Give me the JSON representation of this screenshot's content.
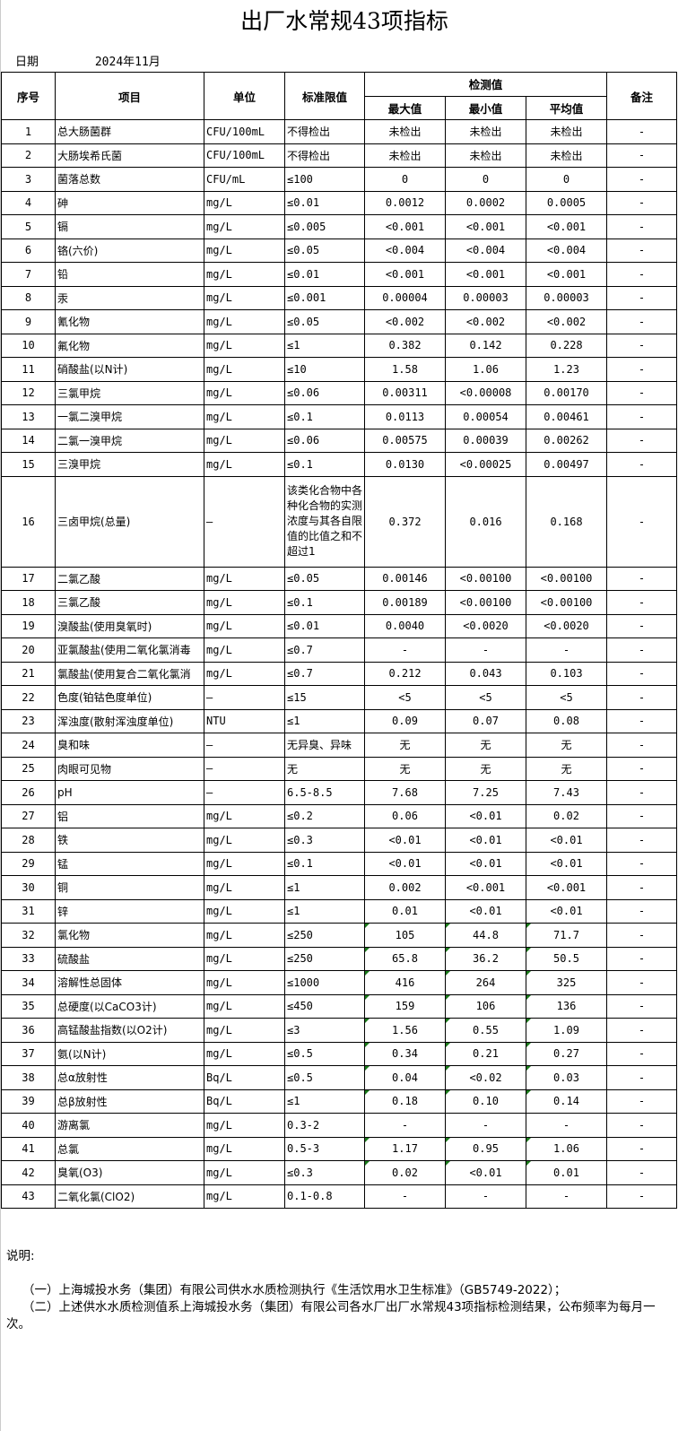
{
  "title": "出厂水常规43项指标",
  "date_label": "日期",
  "date_value": "2024年11月",
  "headers": {
    "no": "序号",
    "item": "项目",
    "unit": "单位",
    "limit": "标准限值",
    "measured": "检测值",
    "max": "最大值",
    "min": "最小值",
    "avg": "平均值",
    "remark": "备注"
  },
  "rows": [
    [
      "1",
      "总大肠菌群",
      "CFU/100mL",
      "不得检出",
      "未检出",
      "未检出",
      "未检出",
      "-"
    ],
    [
      "2",
      "大肠埃希氏菌",
      "CFU/100mL",
      "不得检出",
      "未检出",
      "未检出",
      "未检出",
      "-"
    ],
    [
      "3",
      "菌落总数",
      "CFU/mL",
      "≤100",
      "0",
      "0",
      "0",
      "-"
    ],
    [
      "4",
      "砷",
      "mg/L",
      "≤0.01",
      "0.0012",
      "0.0002",
      "0.0005",
      "-"
    ],
    [
      "5",
      "镉",
      "mg/L",
      "≤0.005",
      "<0.001",
      "<0.001",
      "<0.001",
      "-"
    ],
    [
      "6",
      "铬(六价)",
      "mg/L",
      "≤0.05",
      "<0.004",
      "<0.004",
      "<0.004",
      "-"
    ],
    [
      "7",
      "铅",
      "mg/L",
      "≤0.01",
      "<0.001",
      "<0.001",
      "<0.001",
      "-"
    ],
    [
      "8",
      "汞",
      "mg/L",
      "≤0.001",
      "0.00004",
      "0.00003",
      "0.00003",
      "-"
    ],
    [
      "9",
      "氰化物",
      "mg/L",
      "≤0.05",
      "<0.002",
      "<0.002",
      "<0.002",
      "-"
    ],
    [
      "10",
      "氟化物",
      "mg/L",
      "≤1",
      "0.382",
      "0.142",
      "0.228",
      "-"
    ],
    [
      "11",
      "硝酸盐(以N计)",
      "mg/L",
      "≤10",
      "1.58",
      "1.06",
      "1.23",
      "-"
    ],
    [
      "12",
      "三氯甲烷",
      "mg/L",
      "≤0.06",
      "0.00311",
      "<0.00008",
      "0.00170",
      "-"
    ],
    [
      "13",
      "一氯二溴甲烷",
      "mg/L",
      "≤0.1",
      "0.0113",
      "0.00054",
      "0.00461",
      "-"
    ],
    [
      "14",
      "二氯一溴甲烷",
      "mg/L",
      "≤0.06",
      "0.00575",
      "0.00039",
      "0.00262",
      "-"
    ],
    [
      "15",
      "三溴甲烷",
      "mg/L",
      "≤0.1",
      "0.0130",
      "<0.00025",
      "0.00497",
      "-"
    ],
    [
      "16",
      "三卤甲烷(总量)",
      "—",
      "该类化合物中各种化合物的实测浓度与其各自限值的比值之和不超过1",
      "0.372",
      "0.016",
      "0.168",
      "-"
    ],
    [
      "17",
      "二氯乙酸",
      "mg/L",
      "≤0.05",
      "0.00146",
      "<0.00100",
      "<0.00100",
      "-"
    ],
    [
      "18",
      "三氯乙酸",
      "mg/L",
      "≤0.1",
      "0.00189",
      "<0.00100",
      "<0.00100",
      "-"
    ],
    [
      "19",
      "溴酸盐(使用臭氧时)",
      "mg/L",
      "≤0.01",
      "0.0040",
      "<0.0020",
      "<0.0020",
      "-"
    ],
    [
      "20",
      "亚氯酸盐(使用二氧化氯消毒",
      "mg/L",
      "≤0.7",
      "-",
      "-",
      "-",
      "-"
    ],
    [
      "21",
      "氯酸盐(使用复合二氧化氯消",
      "mg/L",
      "≤0.7",
      "0.212",
      "0.043",
      "0.103",
      "-"
    ],
    [
      "22",
      "色度(铂钴色度单位)",
      "—",
      "≤15",
      "<5",
      "<5",
      "<5",
      "-"
    ],
    [
      "23",
      "浑浊度(散射浑浊度单位)",
      "NTU",
      "≤1",
      "0.09",
      "0.07",
      "0.08",
      "-"
    ],
    [
      "24",
      "臭和味",
      "—",
      "无异臭、异味",
      "无",
      "无",
      "无",
      "-"
    ],
    [
      "25",
      "肉眼可见物",
      "—",
      "无",
      "无",
      "无",
      "无",
      "-"
    ],
    [
      "26",
      "pH",
      "—",
      "6.5-8.5",
      "7.68",
      "7.25",
      "7.43",
      "-"
    ],
    [
      "27",
      "铝",
      "mg/L",
      "≤0.2",
      "0.06",
      "<0.01",
      "0.02",
      "-"
    ],
    [
      "28",
      "铁",
      "mg/L",
      "≤0.3",
      "<0.01",
      "<0.01",
      "<0.01",
      "-"
    ],
    [
      "29",
      "锰",
      "mg/L",
      "≤0.1",
      "<0.01",
      "<0.01",
      "<0.01",
      "-"
    ],
    [
      "30",
      "铜",
      "mg/L",
      "≤1",
      "0.002",
      "<0.001",
      "<0.001",
      "-"
    ],
    [
      "31",
      "锌",
      "mg/L",
      "≤1",
      "0.01",
      "<0.01",
      "<0.01",
      "-"
    ],
    [
      "32",
      "氯化物",
      "mg/L",
      "≤250",
      "105",
      "44.8",
      "71.7",
      "-"
    ],
    [
      "33",
      "硫酸盐",
      "mg/L",
      "≤250",
      "65.8",
      "36.2",
      "50.5",
      "-"
    ],
    [
      "34",
      "溶解性总固体",
      "mg/L",
      "≤1000",
      "416",
      "264",
      "325",
      "-"
    ],
    [
      "35",
      "总硬度(以CaCO3计)",
      "mg/L",
      "≤450",
      "159",
      "106",
      "136",
      "-"
    ],
    [
      "36",
      "高锰酸盐指数(以O2计)",
      "mg/L",
      "≤3",
      "1.56",
      "0.55",
      "1.09",
      "-"
    ],
    [
      "37",
      "氨(以N计)",
      "mg/L",
      "≤0.5",
      "0.34",
      "0.21",
      "0.27",
      "-"
    ],
    [
      "38",
      "总α放射性",
      "Bq/L",
      "≤0.5",
      "0.04",
      "<0.02",
      "0.03",
      "-"
    ],
    [
      "39",
      "总β放射性",
      "Bq/L",
      "≤1",
      "0.18",
      "0.10",
      "0.14",
      "-"
    ],
    [
      "40",
      "游离氯",
      "mg/L",
      "0.3-2",
      "-",
      "-",
      "-",
      "-"
    ],
    [
      "41",
      "总氯",
      "mg/L",
      "0.5-3",
      "1.17",
      "0.95",
      "1.06",
      "-"
    ],
    [
      "42",
      "臭氧(O3)",
      "mg/L",
      "≤0.3",
      "0.02",
      "<0.01",
      "0.01",
      "-"
    ],
    [
      "43",
      "二氧化氯(ClO2)",
      "mg/L",
      "0.1-0.8",
      "-",
      "-",
      "-",
      "-"
    ]
  ],
  "notes": {
    "label": "说明:",
    "items": [
      "（一）上海城投水务（集团）有限公司供水水质检测执行《生活饮用水卫生标准》（GB5749-2022）；",
      "（二）上述供水水质检测值系上海城投水务（集团）有限公司各水厂出厂水常规43项指标检测结果，公布频率为每月一次。"
    ]
  }
}
